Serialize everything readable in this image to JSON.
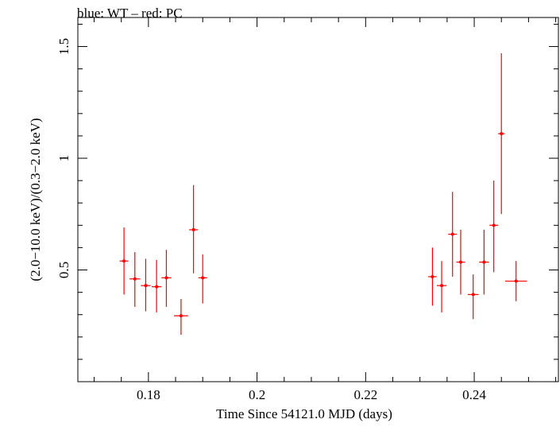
{
  "chart_data": {
    "type": "scatter",
    "title": "blue: WT – red: PC",
    "xlabel": "Time Since 54121.0 MJD (days)",
    "ylabel": "(2.0−10.0 keV)/(0.3−2.0 keV)",
    "xlim": [
      0.167,
      0.2555
    ],
    "ylim": [
      0.0,
      1.63
    ],
    "x_major_ticks": [
      0.18,
      0.2,
      0.22,
      0.24
    ],
    "x_tick_labels": [
      "0.18",
      "0.2",
      "0.22",
      "0.24"
    ],
    "x_minor_step": 0.005,
    "y_major_ticks": [
      0.5,
      1.0,
      1.5
    ],
    "y_tick_labels": [
      "0.5",
      "1",
      "1.5"
    ],
    "y_minor_step": 0.1,
    "grid": false,
    "legend": "none",
    "series": [
      {
        "color": "#ff0000",
        "points": [
          {
            "x": 0.1755,
            "xerr": 0.0008,
            "y": 0.54,
            "ylo": 0.39,
            "yhi": 0.69
          },
          {
            "x": 0.1775,
            "xerr": 0.001,
            "y": 0.46,
            "ylo": 0.335,
            "yhi": 0.58
          },
          {
            "x": 0.1795,
            "xerr": 0.0009,
            "y": 0.43,
            "ylo": 0.315,
            "yhi": 0.55
          },
          {
            "x": 0.1815,
            "xerr": 0.0009,
            "y": 0.425,
            "ylo": 0.31,
            "yhi": 0.545
          },
          {
            "x": 0.1833,
            "xerr": 0.0009,
            "y": 0.465,
            "ylo": 0.335,
            "yhi": 0.59
          },
          {
            "x": 0.186,
            "xerr": 0.0013,
            "y": 0.295,
            "ylo": 0.21,
            "yhi": 0.37
          },
          {
            "x": 0.1883,
            "xerr": 0.0008,
            "y": 0.68,
            "ylo": 0.485,
            "yhi": 0.88
          },
          {
            "x": 0.19,
            "xerr": 0.0008,
            "y": 0.465,
            "ylo": 0.35,
            "yhi": 0.57
          },
          {
            "x": 0.2323,
            "xerr": 0.0008,
            "y": 0.47,
            "ylo": 0.34,
            "yhi": 0.6
          },
          {
            "x": 0.234,
            "xerr": 0.0009,
            "y": 0.43,
            "ylo": 0.31,
            "yhi": 0.54
          },
          {
            "x": 0.236,
            "xerr": 0.0008,
            "y": 0.66,
            "ylo": 0.47,
            "yhi": 0.85
          },
          {
            "x": 0.2375,
            "xerr": 0.0008,
            "y": 0.535,
            "ylo": 0.39,
            "yhi": 0.68
          },
          {
            "x": 0.2398,
            "xerr": 0.001,
            "y": 0.39,
            "ylo": 0.28,
            "yhi": 0.48
          },
          {
            "x": 0.2418,
            "xerr": 0.0009,
            "y": 0.535,
            "ylo": 0.39,
            "yhi": 0.68
          },
          {
            "x": 0.2436,
            "xerr": 0.0008,
            "y": 0.7,
            "ylo": 0.49,
            "yhi": 0.9
          },
          {
            "x": 0.245,
            "xerr": 0.0006,
            "y": 1.11,
            "ylo": 0.75,
            "yhi": 1.47
          },
          {
            "x": 0.2477,
            "xerr": 0.002,
            "y": 0.45,
            "ylo": 0.36,
            "yhi": 0.54
          }
        ]
      }
    ]
  }
}
